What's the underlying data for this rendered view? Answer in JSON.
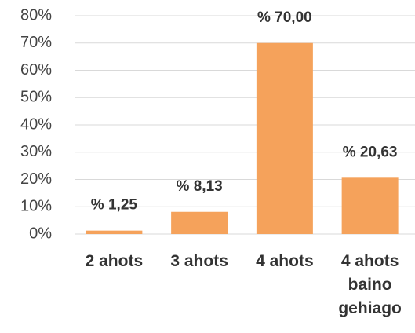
{
  "chart_data": {
    "type": "bar",
    "categories": [
      "2 ahots",
      "3 ahots",
      "4 ahots",
      "4 ahots baino gehiago"
    ],
    "values": [
      1.25,
      8.13,
      70,
      20.63
    ],
    "value_labels": [
      "% 1,25",
      "% 8,13",
      "% 70,00",
      "% 20,63"
    ],
    "color": "#f5a25b",
    "ylim": [
      0,
      80
    ],
    "yticks": [
      {
        "value": 0,
        "label": "0%"
      },
      {
        "value": 10,
        "label": "10%"
      },
      {
        "value": 20,
        "label": "20%"
      },
      {
        "value": 30,
        "label": "30%"
      },
      {
        "value": 40,
        "label": "40%"
      },
      {
        "value": 50,
        "label": "50%"
      },
      {
        "value": 60,
        "label": "60%"
      },
      {
        "value": 70,
        "label": "70%"
      },
      {
        "value": 80,
        "label": "80%"
      }
    ],
    "grid": true
  }
}
